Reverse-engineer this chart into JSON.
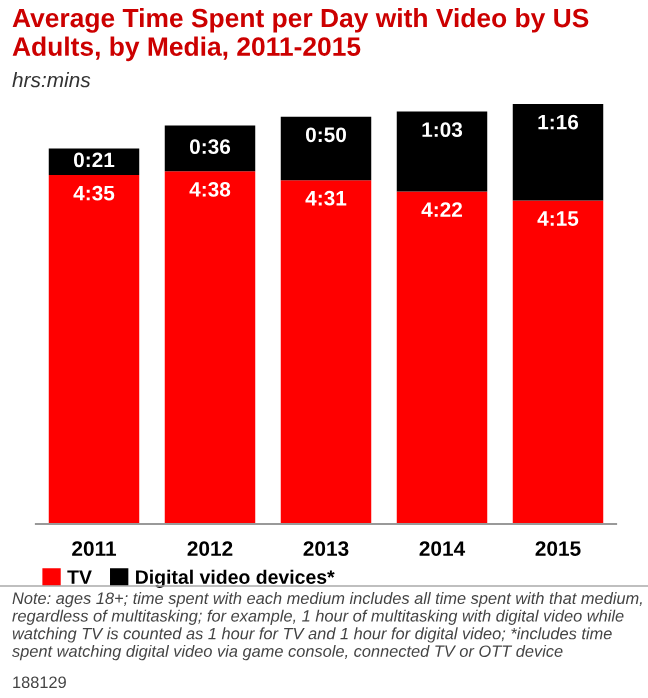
{
  "chart_data": {
    "type": "bar",
    "stacked": true,
    "title": "Average Time Spent per Day with Video by US Adults, by Media, 2011-2015",
    "subtitle": "hrs:mins",
    "categories": [
      "2011",
      "2012",
      "2013",
      "2014",
      "2015"
    ],
    "series": [
      {
        "name": "TV",
        "color": "#ff0000",
        "values": [
          275,
          278,
          271,
          262,
          255
        ],
        "value_labels": [
          "4:35",
          "4:38",
          "4:31",
          "4:22",
          "4:15"
        ]
      },
      {
        "name": "Digital video devices*",
        "color": "#000000",
        "values": [
          21,
          36,
          50,
          63,
          76
        ],
        "value_labels": [
          "0:21",
          "0:36",
          "0:50",
          "1:03",
          "1:16"
        ]
      }
    ],
    "legend": "bottom",
    "grid": false,
    "annotations": [
      "Note: ages 18+; time spent with each medium includes all time spent with that medium, regardless of multitasking; for example, 1 hour of multitasking with digital video while watching TV is counted as 1 hour for TV and 1 hour for digital video; *includes time spent watching digital video via game console, connected TV or OTT device",
      "188129"
    ]
  }
}
